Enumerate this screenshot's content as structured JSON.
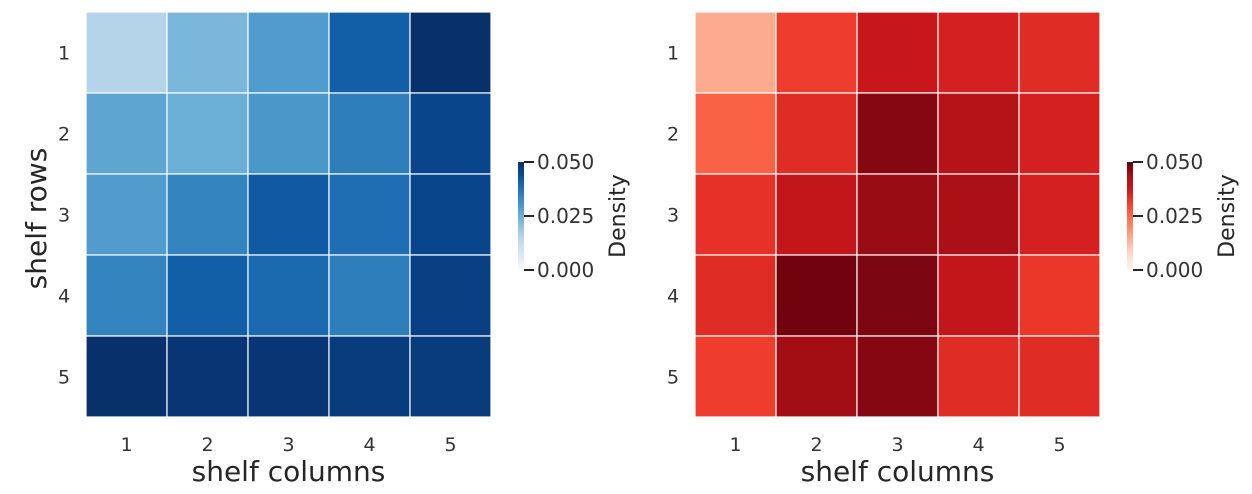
{
  "chart_data": [
    {
      "type": "heatmap",
      "colormap": "Blues",
      "title": "",
      "xlabel": "shelf columns",
      "ylabel": "shelf rows",
      "x_categories": [
        "1",
        "2",
        "3",
        "4",
        "5"
      ],
      "y_categories": [
        "1",
        "2",
        "3",
        "4",
        "5"
      ],
      "values": [
        [
          0.015,
          0.023,
          0.029,
          0.041,
          0.05
        ],
        [
          0.027,
          0.025,
          0.03,
          0.035,
          0.046
        ],
        [
          0.029,
          0.034,
          0.042,
          0.038,
          0.046
        ],
        [
          0.034,
          0.041,
          0.039,
          0.035,
          0.047
        ],
        [
          0.05,
          0.049,
          0.049,
          0.048,
          0.048
        ]
      ],
      "colorbar": {
        "label": "Density",
        "min": 0.0,
        "max": 0.05,
        "ticks": [
          "0.000",
          "0.025",
          "0.050"
        ]
      },
      "colors": {
        "low": "#f7fbff",
        "high": "#08306b"
      }
    },
    {
      "type": "heatmap",
      "colormap": "Reds",
      "title": "",
      "xlabel": "shelf columns",
      "ylabel": "",
      "x_categories": [
        "1",
        "2",
        "3",
        "4",
        "5"
      ],
      "y_categories": [
        "1",
        "2",
        "3",
        "4",
        "5"
      ],
      "values": [
        [
          0.015,
          0.031,
          0.038,
          0.036,
          0.034
        ],
        [
          0.026,
          0.034,
          0.047,
          0.041,
          0.036
        ],
        [
          0.033,
          0.039,
          0.045,
          0.043,
          0.036
        ],
        [
          0.034,
          0.049,
          0.048,
          0.039,
          0.032
        ],
        [
          0.031,
          0.044,
          0.047,
          0.034,
          0.034
        ]
      ],
      "colorbar": {
        "label": "Density",
        "min": 0.0,
        "max": 0.05,
        "ticks": [
          "0.000",
          "0.025",
          "0.050"
        ]
      },
      "colors": {
        "low": "#fff5f0",
        "high": "#67000d"
      }
    }
  ]
}
